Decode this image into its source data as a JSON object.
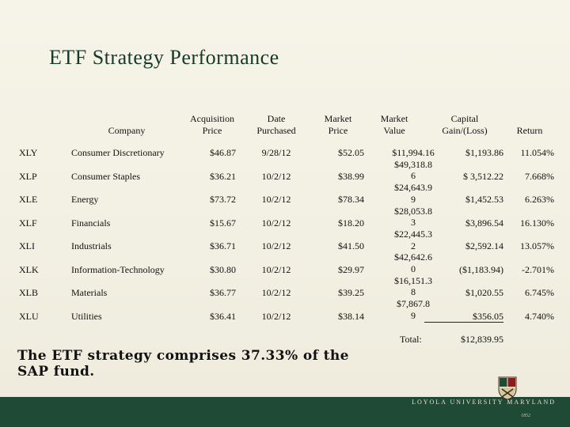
{
  "title": "ETF Strategy Performance",
  "headers": {
    "company": "Company",
    "acq_price": [
      "Acquisition",
      "Price"
    ],
    "date": [
      "Date",
      "Purchased"
    ],
    "market_price": [
      "Market",
      "Price"
    ],
    "market_value": [
      "Market",
      "Value"
    ],
    "capital": [
      "Capital",
      "Gain/(Loss)"
    ],
    "return": "Return"
  },
  "rows": [
    {
      "ticker": "XLY",
      "company": "Consumer Discretionary",
      "acq": "$46.87",
      "date": "9/28/12",
      "price": "$52.05",
      "gain": "$1,193.86",
      "ret": "11.054%"
    },
    {
      "ticker": "XLP",
      "company": "Consumer Staples",
      "acq": "$36.21",
      "date": "10/2/12",
      "price": "$38.99",
      "gain": "$ 3,512.22",
      "ret": "7.668%"
    },
    {
      "ticker": "XLE",
      "company": "Energy",
      "acq": "$73.72",
      "date": "10/2/12",
      "price": "$78.34",
      "gain": "$1,452.53",
      "ret": "6.263%"
    },
    {
      "ticker": "XLF",
      "company": "Financials",
      "acq": "$15.67",
      "date": "10/2/12",
      "price": "$18.20",
      "gain": "$3,896.54",
      "ret": "16.130%"
    },
    {
      "ticker": "XLI",
      "company": "Industrials",
      "acq": "$36.71",
      "date": "10/2/12",
      "price": "$41.50",
      "gain": "$2,592.14",
      "ret": "13.057%"
    },
    {
      "ticker": "XLK",
      "company": "Information-Technology",
      "acq": "$30.80",
      "date": "10/2/12",
      "price": "$29.97",
      "gain": "($1,183.94)",
      "ret": "-2.701%"
    },
    {
      "ticker": "XLB",
      "company": "Materials",
      "acq": "$36.77",
      "date": "10/2/12",
      "price": "$39.25",
      "gain": "$1,020.55",
      "ret": "6.745%"
    },
    {
      "ticker": "XLU",
      "company": "Utilities",
      "acq": "$36.41",
      "date": "10/2/12",
      "price": "$38.14",
      "gain": "$356.05",
      "ret": "4.740%"
    }
  ],
  "market_value_lines": [
    "$11,994.16",
    "$49,318.8",
    "6",
    "$24,643.9",
    "9",
    "$28,053.8",
    "3",
    "$22,445.3",
    "2",
    "$42,642.6",
    "0",
    "$16,151.3",
    "8",
    "$7,867.8",
    "9"
  ],
  "total": {
    "label": "Total:",
    "value": "$12,839.95"
  },
  "footnote": "The ETF strategy comprises 37.33% of the SAP fund.",
  "logo": {
    "name": "LOYOLA UNIVERSITY MARYLAND",
    "sub": "1852"
  },
  "colors": {
    "title": "#163a2a",
    "footer": "#1f4a35"
  }
}
